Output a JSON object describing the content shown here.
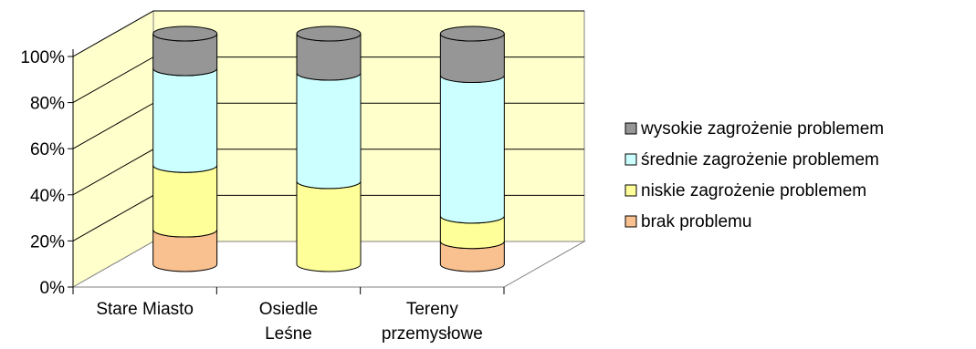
{
  "chart_data": {
    "type": "bar",
    "stacked": true,
    "percent_stacked": true,
    "three_d": true,
    "categories": [
      [
        "Stare Miasto"
      ],
      [
        "Osiedle",
        "Leśne"
      ],
      [
        "Tereny",
        "przemysłowe"
      ]
    ],
    "series": [
      {
        "name": "brak problemu",
        "color": "#f9c090",
        "values": [
          15,
          0,
          10
        ]
      },
      {
        "name": "niskie zagrożenie problemem",
        "color": "#ffff99",
        "values": [
          28,
          36,
          11
        ]
      },
      {
        "name": "średnie zagrożenie problemem",
        "color": "#ccffff",
        "values": [
          42,
          47,
          61
        ]
      },
      {
        "name": "wysokie zagrożenie problemem",
        "color": "#969696",
        "values": [
          15,
          17,
          18
        ]
      }
    ],
    "y_ticks": [
      "0%",
      "20%",
      "40%",
      "60%",
      "80%",
      "100%"
    ],
    "ylim": [
      0,
      100
    ],
    "grid": true,
    "wall_color": "#ffffcc",
    "legend_position": "right"
  }
}
